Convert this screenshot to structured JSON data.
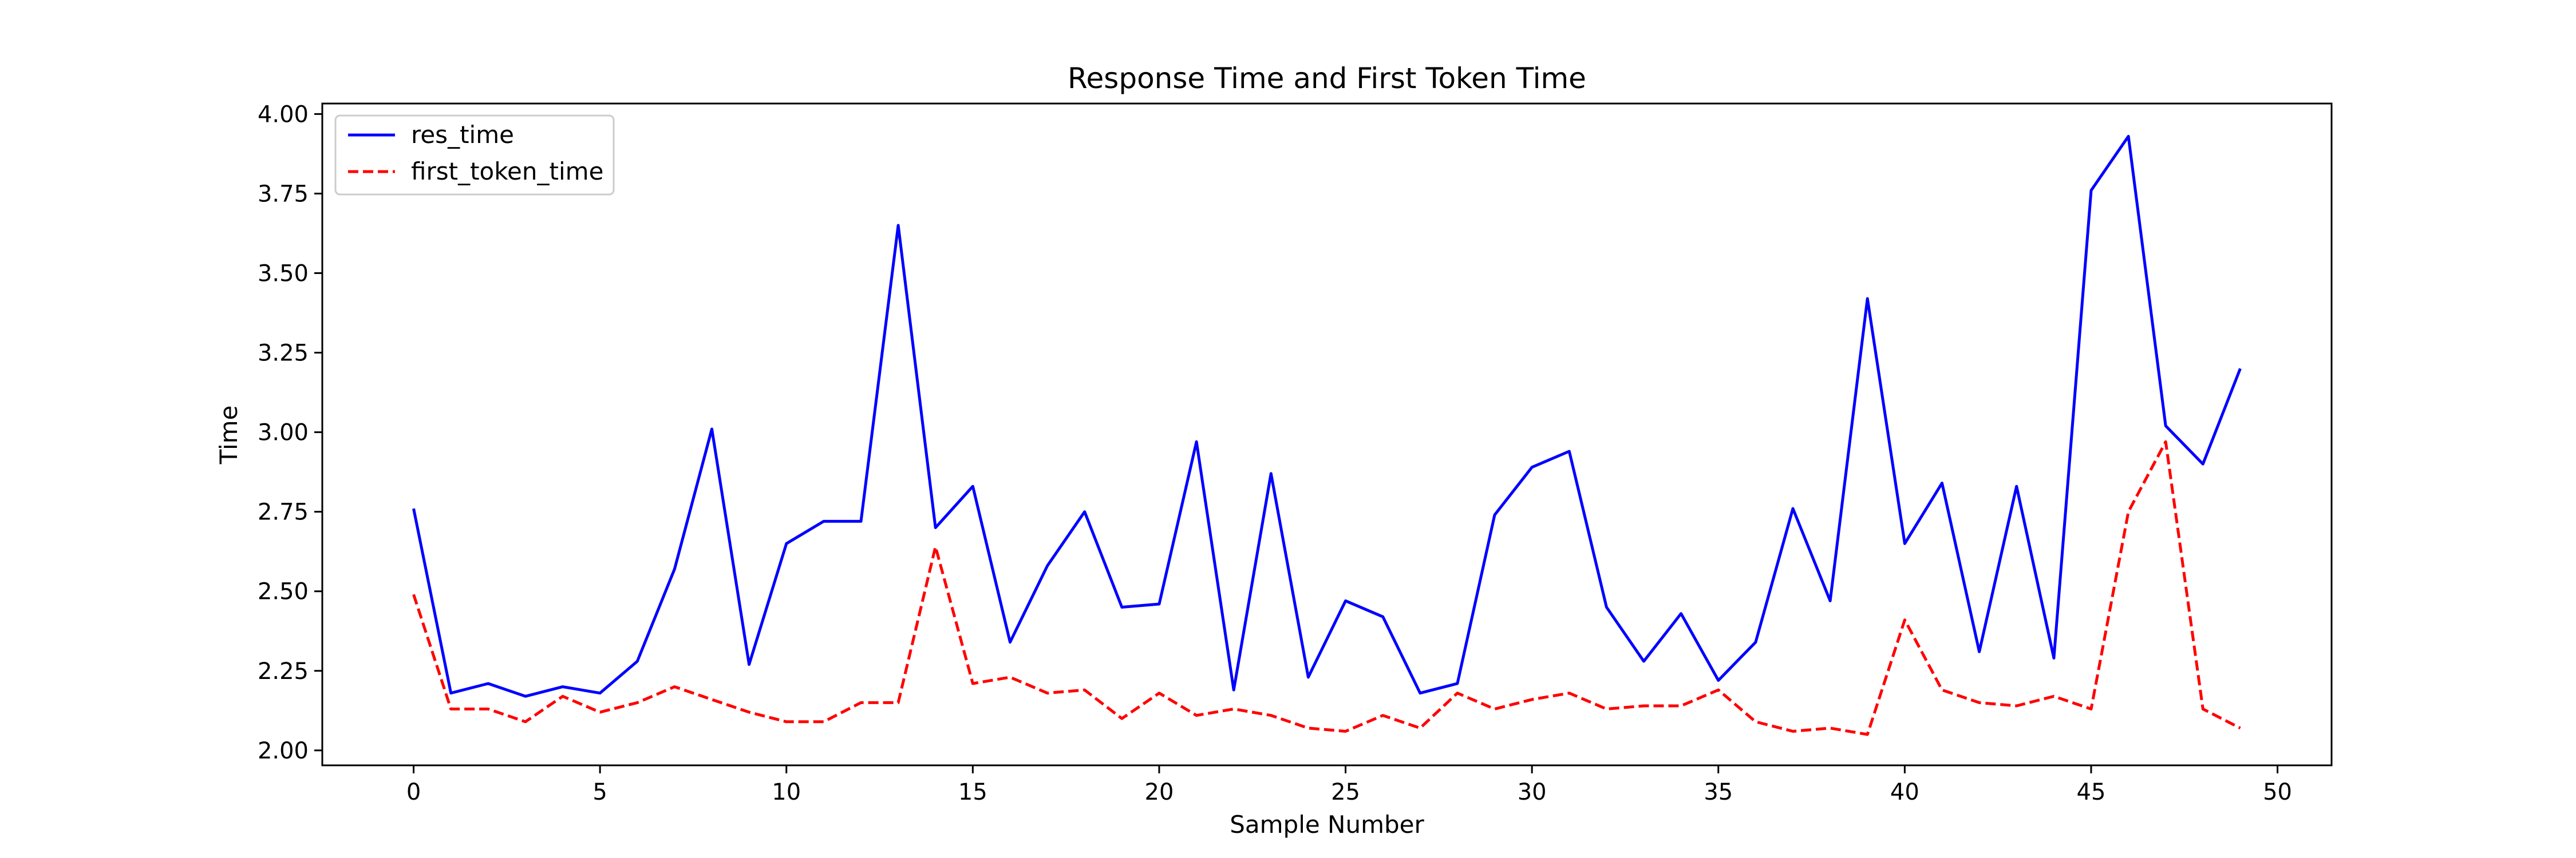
{
  "chart_data": {
    "type": "line",
    "title": "Response Time and First Token Time",
    "xlabel": "Sample Number",
    "ylabel": "Time",
    "xlim": [
      -2.45,
      51.45
    ],
    "ylim": [
      1.953,
      4.033
    ],
    "xticks": [
      0,
      5,
      10,
      15,
      20,
      25,
      30,
      35,
      40,
      45,
      50
    ],
    "yticks": [
      2.0,
      2.25,
      2.5,
      2.75,
      3.0,
      3.25,
      3.5,
      3.75,
      4.0
    ],
    "grid": false,
    "legend_position": "upper-left",
    "x": [
      0,
      1,
      2,
      3,
      4,
      5,
      6,
      7,
      8,
      9,
      10,
      11,
      12,
      13,
      14,
      15,
      16,
      17,
      18,
      19,
      20,
      21,
      22,
      23,
      24,
      25,
      26,
      27,
      28,
      29,
      30,
      31,
      32,
      33,
      34,
      35,
      36,
      37,
      38,
      39,
      40,
      41,
      42,
      43,
      44,
      45,
      46,
      47,
      48,
      49
    ],
    "series": [
      {
        "name": "res_time",
        "color": "#0000ff",
        "style": "solid",
        "values": [
          2.76,
          2.18,
          2.21,
          2.17,
          2.2,
          2.18,
          2.28,
          2.57,
          3.01,
          2.27,
          2.65,
          2.72,
          2.72,
          3.65,
          2.7,
          2.83,
          2.34,
          2.58,
          2.75,
          2.45,
          2.46,
          2.97,
          2.19,
          2.87,
          2.23,
          2.47,
          2.42,
          2.18,
          2.21,
          2.74,
          2.89,
          2.94,
          2.45,
          2.28,
          2.43,
          2.22,
          2.34,
          2.76,
          2.47,
          3.42,
          2.65,
          2.84,
          2.31,
          2.83,
          2.29,
          3.76,
          3.93,
          3.02,
          2.9,
          3.2
        ]
      },
      {
        "name": "first_token_time",
        "color": "#ff0000",
        "style": "dashed",
        "values": [
          2.49,
          2.13,
          2.13,
          2.09,
          2.17,
          2.12,
          2.15,
          2.2,
          2.16,
          2.12,
          2.09,
          2.09,
          2.15,
          2.15,
          2.64,
          2.21,
          2.23,
          2.18,
          2.19,
          2.1,
          2.18,
          2.11,
          2.13,
          2.11,
          2.07,
          2.06,
          2.11,
          2.07,
          2.18,
          2.13,
          2.16,
          2.18,
          2.13,
          2.14,
          2.14,
          2.19,
          2.09,
          2.06,
          2.07,
          2.05,
          2.41,
          2.19,
          2.15,
          2.14,
          2.17,
          2.13,
          2.75,
          2.97,
          2.13,
          2.07
        ]
      }
    ]
  }
}
